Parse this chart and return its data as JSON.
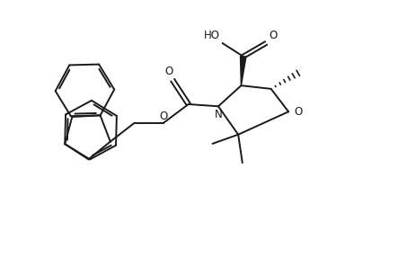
{
  "bg_color": "#ffffff",
  "line_color": "#1a1a1a",
  "line_width": 1.4,
  "figsize": [
    4.53,
    3.06
  ],
  "dpi": 100,
  "xlim": [
    0,
    9.5
  ],
  "ylim": [
    0,
    6.5
  ]
}
